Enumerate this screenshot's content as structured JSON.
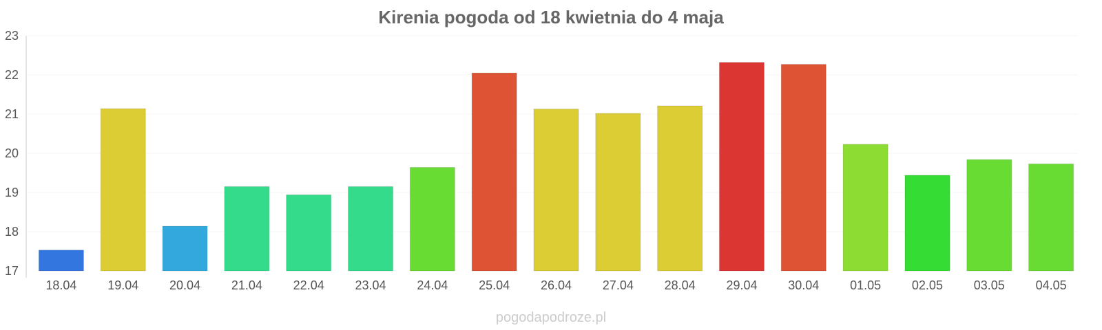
{
  "chart_data": {
    "type": "bar",
    "title": "Kirenia pogoda od 18 kwietnia do 4 maja",
    "xlabel": "",
    "ylabel": "",
    "ylim": [
      17,
      23
    ],
    "yticks": [
      "17",
      "18",
      "19",
      "20",
      "21",
      "22",
      "23"
    ],
    "grid": true,
    "categories": [
      "18.04",
      "19.04",
      "20.04",
      "21.04",
      "22.04",
      "23.04",
      "24.04",
      "25.04",
      "26.04",
      "27.04",
      "28.04",
      "29.04",
      "30.04",
      "01.05",
      "02.05",
      "03.05",
      "04.05"
    ],
    "values": [
      17.53,
      21.14,
      18.14,
      19.15,
      18.94,
      19.15,
      19.64,
      22.05,
      21.13,
      21.02,
      21.21,
      22.32,
      22.27,
      20.23,
      19.44,
      19.84,
      19.73
    ],
    "colors": [
      "#3376e0",
      "#dbcd33",
      "#33a8dc",
      "#34db8a",
      "#34db8a",
      "#34db8a",
      "#69dc34",
      "#dd5333",
      "#dbcd33",
      "#dbcd33",
      "#dbcd33",
      "#dc3633",
      "#dd5333",
      "#8ddc34",
      "#34dc34",
      "#69dc34",
      "#69dc34"
    ]
  },
  "watermark": "pogodapodroze.pl"
}
